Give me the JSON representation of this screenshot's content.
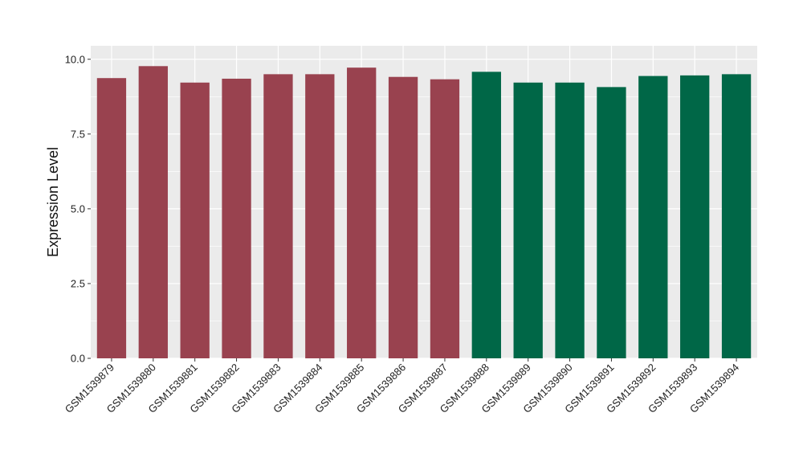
{
  "chart_data": {
    "type": "bar",
    "title": "",
    "xlabel": "",
    "ylabel": "Expression Level",
    "ylim": [
      0,
      10.45
    ],
    "y_ticks": [
      0.0,
      2.5,
      5.0,
      7.5,
      10.0
    ],
    "y_tick_labels": [
      "0.0",
      "2.5",
      "5.0",
      "7.5",
      "10.0"
    ],
    "grid": true,
    "legend": "none",
    "categories": [
      "GSM1539879",
      "GSM1539880",
      "GSM1539881",
      "GSM1539882",
      "GSM1539883",
      "GSM1539884",
      "GSM1539885",
      "GSM1539886",
      "GSM1539887",
      "GSM1539888",
      "GSM1539889",
      "GSM1539890",
      "GSM1539891",
      "GSM1539892",
      "GSM1539893",
      "GSM1539894"
    ],
    "values": [
      9.37,
      9.77,
      9.22,
      9.35,
      9.5,
      9.5,
      9.72,
      9.41,
      9.33,
      9.58,
      9.22,
      9.22,
      9.07,
      9.44,
      9.46,
      9.5
    ],
    "bar_colors": [
      "#99424f",
      "#99424f",
      "#99424f",
      "#99424f",
      "#99424f",
      "#99424f",
      "#99424f",
      "#99424f",
      "#99424f",
      "#006747",
      "#006747",
      "#006747",
      "#006747",
      "#006747",
      "#006747",
      "#006747"
    ],
    "panel_background": "#ebebeb",
    "grid_color": "#ffffff"
  }
}
